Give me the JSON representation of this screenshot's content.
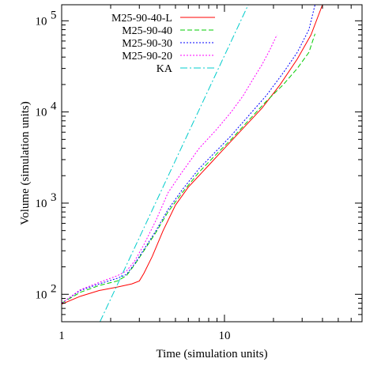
{
  "chart_data": {
    "type": "line",
    "title": "",
    "xlabel": "Time (simulation units)",
    "ylabel": "Volume (simulation units)",
    "xscale": "log",
    "yscale": "log",
    "xlim": [
      1,
      70
    ],
    "ylim": [
      50,
      150000
    ],
    "x_ticks": [
      {
        "value": 1,
        "label": "1"
      },
      {
        "value": 10,
        "label": "10"
      }
    ],
    "y_ticks": [
      {
        "value": 100,
        "label": "10",
        "exp": "2"
      },
      {
        "value": 1000,
        "label": "10",
        "exp": "3"
      },
      {
        "value": 10000,
        "label": "10",
        "exp": "4"
      },
      {
        "value": 100000,
        "label": "10",
        "exp": "5"
      }
    ],
    "grid": false,
    "legend": "top-left",
    "series": [
      {
        "name": "M25-90-40-L",
        "color": "#ff0000",
        "dash": "solid",
        "x": [
          1.0,
          1.3,
          1.7,
          2.2,
          2.7,
          3.0,
          3.2,
          3.6,
          4.2,
          5.0,
          6.0,
          8.0,
          10.0,
          13.0,
          17.0,
          22.0,
          28.0,
          34.0,
          40.0
        ],
        "y": [
          78,
          95,
          110,
          120,
          130,
          140,
          170,
          260,
          500,
          950,
          1500,
          2600,
          4000,
          6600,
          11000,
          20000,
          38000,
          70000,
          150000
        ]
      },
      {
        "name": "M25-90-40",
        "color": "#00cc00",
        "dash": "dashed",
        "x": [
          1.0,
          1.3,
          1.7,
          2.2,
          2.5,
          2.8,
          3.2,
          3.8,
          4.5,
          5.5,
          7.0,
          9.0,
          11.0,
          14.0,
          18.0,
          23.0,
          28.0,
          33.0,
          36.0
        ],
        "y": [
          80,
          105,
          125,
          140,
          160,
          210,
          300,
          480,
          800,
          1300,
          2200,
          3500,
          5000,
          8000,
          13000,
          20000,
          30000,
          45000,
          72000
        ]
      },
      {
        "name": "M25-90-30",
        "color": "#0000ff",
        "dash": "dotted",
        "x": [
          1.0,
          1.3,
          1.7,
          2.2,
          2.5,
          2.8,
          3.2,
          3.8,
          4.5,
          5.5,
          7.0,
          9.0,
          11.0,
          14.0,
          18.0,
          23.0,
          28.0,
          33.0,
          36.0
        ],
        "y": [
          80,
          110,
          130,
          150,
          165,
          215,
          310,
          500,
          850,
          1400,
          2400,
          3800,
          5500,
          9000,
          15000,
          27000,
          45000,
          80000,
          150000
        ]
      },
      {
        "name": "M25-90-20",
        "color": "#ff00ff",
        "dash": "dotted",
        "x": [
          1.0,
          1.3,
          1.7,
          2.2,
          2.5,
          2.8,
          3.2,
          3.8,
          4.5,
          5.5,
          7.0,
          9.0,
          11.0,
          13.0,
          15.0,
          17.0,
          19.0,
          21.0
        ],
        "y": [
          80,
          112,
          135,
          160,
          180,
          230,
          350,
          650,
          1300,
          2200,
          4000,
          6500,
          10000,
          15000,
          23000,
          33000,
          48000,
          70000
        ]
      },
      {
        "name": "KA",
        "color": "#00cccc",
        "dash": "dashdot",
        "x": [
          1.72,
          14.0
        ],
        "y": [
          50,
          150000
        ]
      }
    ]
  }
}
